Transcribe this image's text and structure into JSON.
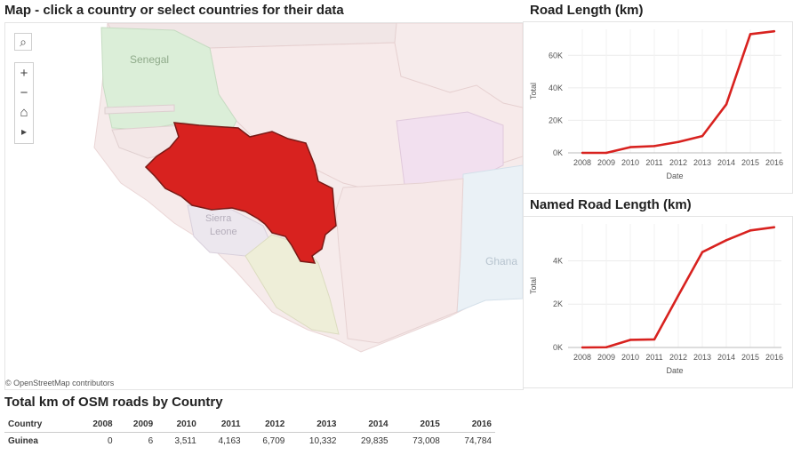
{
  "map": {
    "title": "Map - click a country or select countries for their data",
    "attribution": "© OpenStreetMap contributors",
    "selected_country_color": "#d8221f",
    "labels": {
      "senegal": "Senegal",
      "sierra_leone_line1": "Sierra",
      "sierra_leone_line2": "Leone",
      "ghana": "Ghana"
    },
    "controls": {
      "search": "⌕",
      "zoom_in": "+",
      "zoom_out": "−",
      "home": "⌂",
      "play": "▸"
    }
  },
  "charts": {
    "road_length": {
      "title": "Road Length (km)",
      "ylabel": "Total",
      "xlabel": "Date",
      "yticks": [
        "0K",
        "20K",
        "40K",
        "60K"
      ],
      "xticks": [
        "2008",
        "2009",
        "2010",
        "2011",
        "2012",
        "2013",
        "2014",
        "2015",
        "2016"
      ]
    },
    "named_road_length": {
      "title": "Named Road Length (km)",
      "ylabel": "Total",
      "xlabel": "Date",
      "yticks": [
        "0K",
        "2K",
        "4K"
      ],
      "xticks": [
        "2008",
        "2009",
        "2010",
        "2011",
        "2012",
        "2013",
        "2014",
        "2015",
        "2016"
      ]
    }
  },
  "table": {
    "title": "Total km of OSM roads by Country",
    "headers": [
      "Country",
      "2008",
      "2009",
      "2010",
      "2011",
      "2012",
      "2013",
      "2014",
      "2015",
      "2016"
    ],
    "rows": [
      [
        "Guinea",
        "0",
        "6",
        "3,511",
        "4,163",
        "6,709",
        "10,332",
        "29,835",
        "73,008",
        "74,784"
      ]
    ]
  },
  "chart_data": [
    {
      "type": "line",
      "title": "Road Length (km)",
      "xlabel": "Date",
      "ylabel": "Total",
      "x": [
        2008,
        2009,
        2010,
        2011,
        2012,
        2013,
        2014,
        2015,
        2016
      ],
      "series": [
        {
          "values": [
            0,
            6,
            3511,
            4163,
            6709,
            10332,
            29835,
            73008,
            74784
          ]
        }
      ],
      "ylim": [
        0,
        76000
      ],
      "grid": true,
      "color": "#d8221f"
    },
    {
      "type": "line",
      "title": "Named Road Length (km)",
      "xlabel": "Date",
      "ylabel": "Total",
      "x": [
        2008,
        2009,
        2010,
        2011,
        2012,
        2013,
        2014,
        2015,
        2016
      ],
      "series": [
        {
          "values": [
            0,
            10,
            350,
            370,
            2400,
            4400,
            4950,
            5400,
            5550
          ]
        }
      ],
      "ylim": [
        0,
        5700
      ],
      "grid": true,
      "color": "#d8221f"
    }
  ]
}
